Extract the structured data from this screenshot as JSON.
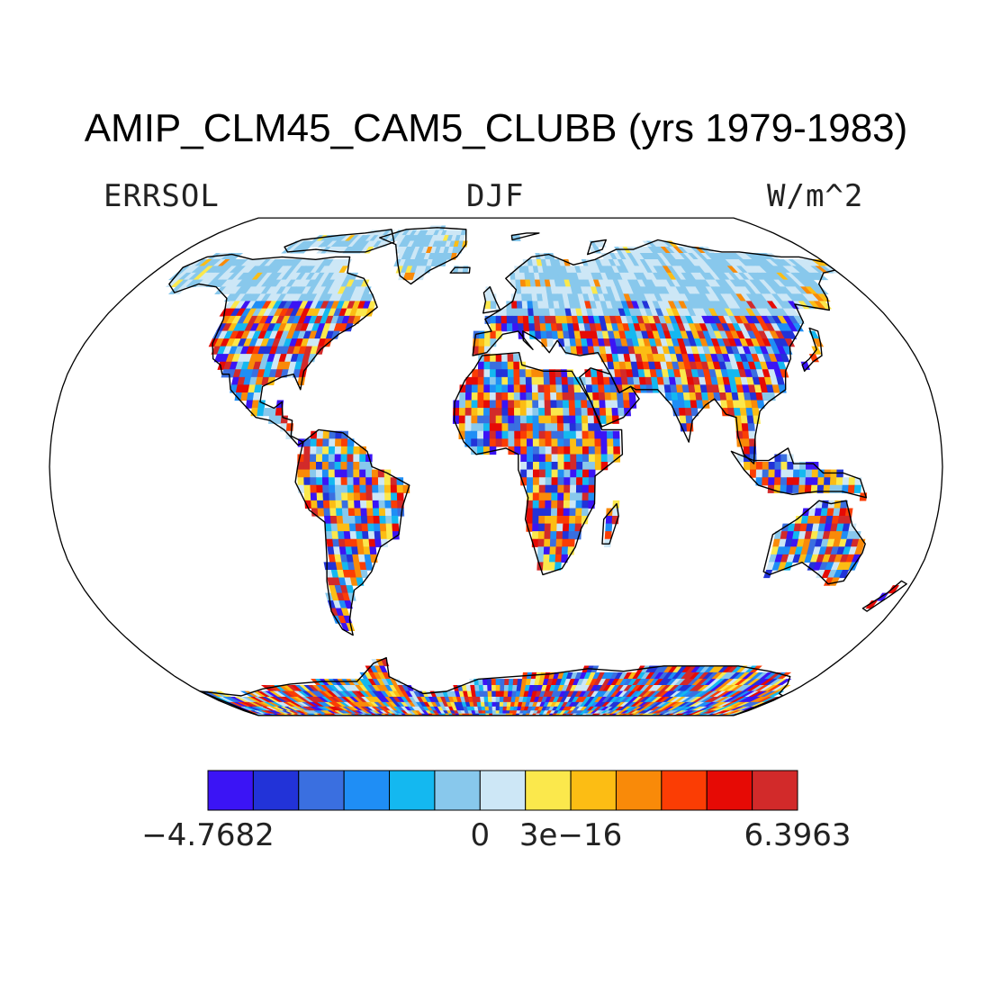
{
  "title": "AMIP_CLM45_CAM5_CLUBB (yrs 1979-1983)",
  "left_label": "ERRSOL",
  "center_label": "DJF",
  "right_label": "W/m^2",
  "projection": "robinson",
  "colorbar": {
    "colors": [
      "#3b14f5",
      "#2233d8",
      "#3a6fe0",
      "#1f8ef5",
      "#14b8f0",
      "#88c8ec",
      "#cde7f6",
      "#fbe84c",
      "#fcbd14",
      "#f98a09",
      "#fb3d04",
      "#e60a05",
      "#d22a2a"
    ],
    "labels": [
      {
        "text": "−4.7682",
        "bin_edge": 0
      },
      {
        "text": "0",
        "bin_edge": 6
      },
      {
        "text": "3e−16",
        "bin_edge": 8
      },
      {
        "text": "6.3963",
        "bin_edge": 13
      }
    ],
    "min": -4.7682,
    "max": 6.3963
  }
}
